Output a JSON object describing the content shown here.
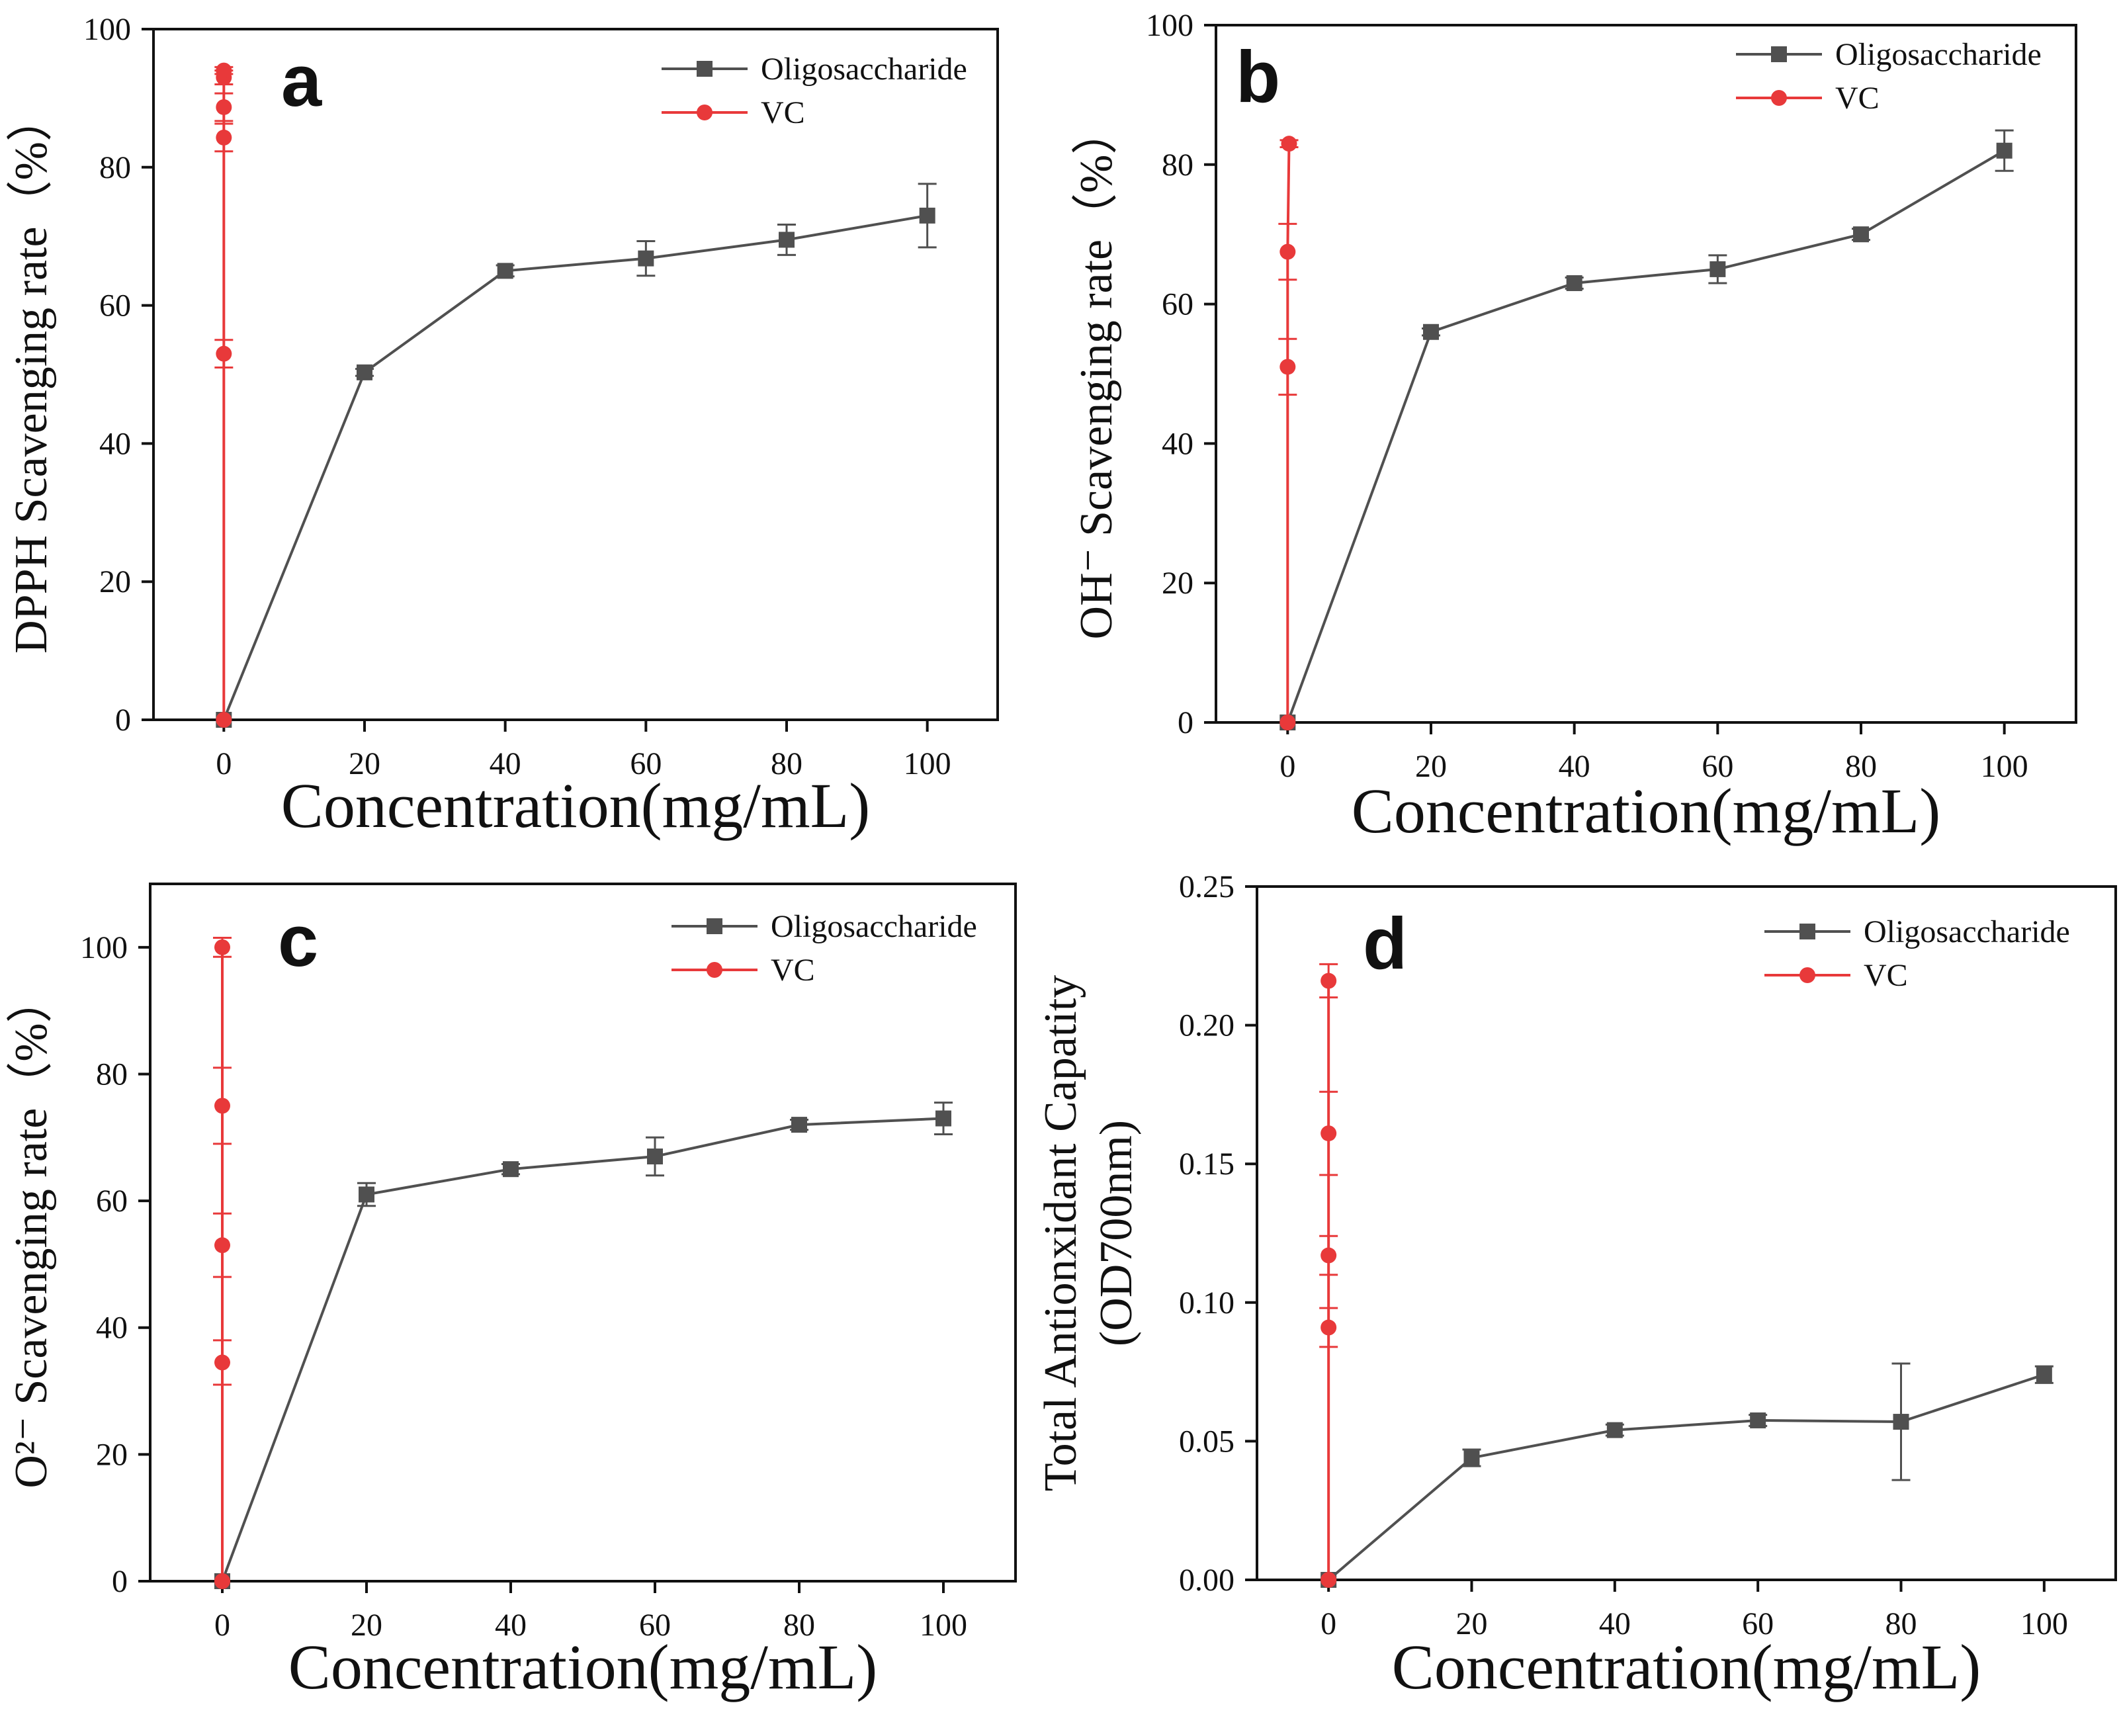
{
  "colors": {
    "oligo": "#505050",
    "vc": "#e8393a",
    "axis": "#111111"
  },
  "chart_data": [
    {
      "type": "line",
      "panel_label": "a",
      "xlabel": "Concentration(mg/mL)",
      "ylabel": "DPPH Scavenging rate（%）",
      "ylabel_parts": [],
      "xlim": [
        -10,
        110
      ],
      "ylim": [
        0,
        100
      ],
      "xticks": [
        "0",
        "20",
        "40",
        "60",
        "80",
        "100"
      ],
      "yticks": [
        "0",
        "20",
        "40",
        "60",
        "80",
        "100"
      ],
      "legend_position": "top-right",
      "series": [
        {
          "name": "Oligosaccharide",
          "marker": "square",
          "color": "#505050",
          "x": [
            0,
            20,
            40,
            60,
            80,
            100
          ],
          "y": [
            0,
            50.3,
            65,
            66.8,
            69.5,
            73
          ],
          "err": [
            0,
            0.5,
            0.8,
            2.5,
            2.2,
            4.6
          ]
        },
        {
          "name": "VC",
          "marker": "circle",
          "color": "#e8393a",
          "x": [
            0,
            0,
            0,
            0,
            0,
            0
          ],
          "y": [
            0,
            53,
            84.3,
            88.7,
            93,
            94
          ],
          "err": [
            0,
            2,
            2,
            2,
            1,
            0.5
          ]
        }
      ]
    },
    {
      "type": "line",
      "panel_label": "b",
      "xlabel": "Concentration(mg/mL)",
      "ylabel": "OH⁻ Scavenging rate（%）",
      "ylabel_parts": [],
      "xlim": [
        -10,
        110
      ],
      "ylim": [
        0,
        100
      ],
      "xticks": [
        "0",
        "20",
        "40",
        "60",
        "80",
        "100"
      ],
      "yticks": [
        "0",
        "20",
        "40",
        "60",
        "80",
        "100"
      ],
      "legend_position": "top-right",
      "series": [
        {
          "name": "Oligosaccharide",
          "marker": "square",
          "color": "#505050",
          "x": [
            0,
            20,
            40,
            60,
            80,
            100
          ],
          "y": [
            0,
            56,
            63,
            65,
            70,
            82
          ],
          "err": [
            0,
            0.5,
            0.8,
            2,
            0.8,
            2.9
          ]
        },
        {
          "name": "VC",
          "marker": "circle",
          "color": "#e8393a",
          "x": [
            0,
            0,
            0,
            0.2
          ],
          "y": [
            0,
            51,
            67.5,
            83
          ],
          "err": [
            0,
            4,
            4,
            0.5
          ]
        }
      ]
    },
    {
      "type": "line",
      "panel_label": "c",
      "xlabel": "Concentration(mg/mL)",
      "ylabel": "O²⁻ Scavenging rate（%）",
      "ylabel_parts": [],
      "xlim": [
        -10,
        110
      ],
      "ylim": [
        0,
        110
      ],
      "xticks": [
        "0",
        "20",
        "40",
        "60",
        "80",
        "100"
      ],
      "yticks": [
        "0",
        "20",
        "40",
        "60",
        "80",
        "100"
      ],
      "legend_position": "top-right",
      "series": [
        {
          "name": "Oligosaccharide",
          "marker": "square",
          "color": "#505050",
          "x": [
            0,
            20,
            40,
            60,
            80,
            100
          ],
          "y": [
            0,
            61,
            65,
            67,
            72,
            73
          ],
          "err": [
            0,
            1.8,
            0.8,
            3,
            0.8,
            2.5
          ]
        },
        {
          "name": "VC",
          "marker": "circle",
          "color": "#e8393a",
          "x": [
            0,
            0,
            0,
            0,
            0
          ],
          "y": [
            0,
            34.5,
            53,
            75,
            100
          ],
          "err": [
            0,
            3.5,
            5,
            6,
            1.5
          ]
        }
      ]
    },
    {
      "type": "line",
      "panel_label": "d",
      "xlabel": "Concentration(mg/mL)",
      "ylabel": "",
      "ylabel_parts": [
        "Total Antionxidant Capatity",
        "(OD700nm)"
      ],
      "xlim": [
        -10,
        110
      ],
      "ylim": [
        0,
        0.25
      ],
      "xticks": [
        "0",
        "20",
        "40",
        "60",
        "80",
        "100"
      ],
      "yticks": [
        "0.00",
        "0.05",
        "0.10",
        "0.15",
        "0.20",
        "0.25"
      ],
      "legend_position": "top-right",
      "series": [
        {
          "name": "Oligosaccharide",
          "marker": "square",
          "color": "#505050",
          "x": [
            0,
            20,
            40,
            60,
            80,
            100
          ],
          "y": [
            0,
            0.044,
            0.054,
            0.0575,
            0.057,
            0.074
          ],
          "err": [
            0,
            0.003,
            0.002,
            0.002,
            0.021,
            0.003
          ]
        },
        {
          "name": "VC",
          "marker": "circle",
          "color": "#e8393a",
          "x": [
            0,
            0,
            0,
            0,
            0
          ],
          "y": [
            0,
            0.091,
            0.117,
            0.161,
            0.216
          ],
          "err": [
            0,
            0.007,
            0.007,
            0.015,
            0.006
          ]
        }
      ]
    }
  ]
}
